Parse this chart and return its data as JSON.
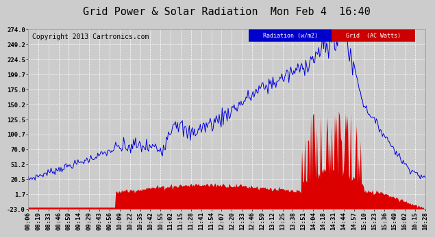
{
  "title": "Grid Power & Solar Radiation  Mon Feb 4  16:40",
  "copyright": "Copyright 2013 Cartronics.com",
  "bg_color": "#cccccc",
  "plot_bg_color": "#cccccc",
  "grid_color": "white",
  "yticks": [
    274.0,
    249.2,
    224.5,
    199.7,
    175.0,
    150.2,
    125.5,
    100.7,
    76.0,
    51.2,
    26.5,
    1.7,
    -23.0
  ],
  "ymin": -23.0,
  "ymax": 274.0,
  "radiation_color": "#0000dd",
  "grid_ac_color": "#dd0000",
  "legend_radiation_bg": "#0000cc",
  "legend_grid_bg": "#cc0000",
  "xtick_labels": [
    "08:06",
    "08:19",
    "08:33",
    "08:46",
    "08:59",
    "09:14",
    "09:29",
    "09:43",
    "09:56",
    "10:09",
    "10:22",
    "10:35",
    "10:42",
    "10:55",
    "11:02",
    "11:15",
    "11:28",
    "11:41",
    "11:54",
    "12:07",
    "12:20",
    "12:33",
    "12:46",
    "12:59",
    "13:12",
    "13:25",
    "13:38",
    "13:51",
    "14:04",
    "14:18",
    "14:31",
    "14:44",
    "14:57",
    "15:10",
    "15:23",
    "15:36",
    "15:49",
    "16:02",
    "16:15",
    "16:28"
  ],
  "title_fontsize": 11,
  "copyright_fontsize": 7,
  "tick_fontsize": 6.5
}
